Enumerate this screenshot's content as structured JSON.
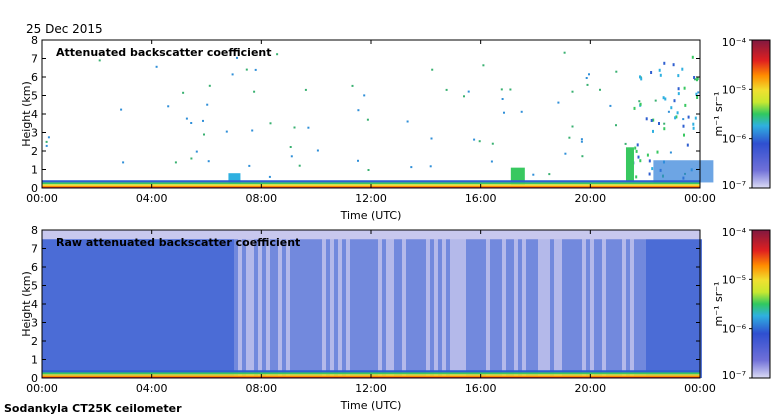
{
  "date": "25 Dec 2015",
  "footer": "Sodankyla CT25K ceilometer",
  "colors": {
    "colorbar": [
      "#1a0a55",
      "#3a2aa0",
      "#2f7fd8",
      "#35c0e0",
      "#38c860",
      "#f0f030",
      "#ff9000",
      "#e0201a",
      "#8a1c2a"
    ],
    "noise_fill": "#c8c8ee",
    "noise_dot": "#2c55d0",
    "axis": "#000000"
  },
  "chart_data": [
    {
      "type": "heatmap",
      "title": "Attenuated backscatter coefficient",
      "xlabel": "Time (UTC)",
      "ylabel": "Height (km)",
      "xlim": [
        "00:00",
        "24:00"
      ],
      "ylim": [
        0,
        8
      ],
      "x_ticks": [
        "00:00",
        "04:00",
        "08:00",
        "12:00",
        "16:00",
        "20:00",
        "00:00"
      ],
      "y_ticks": [
        "0",
        "1",
        "2",
        "3",
        "4",
        "5",
        "6",
        "7",
        "8"
      ],
      "colorbar": {
        "scale": "log",
        "range": [
          1e-07,
          0.0001
        ],
        "label": "m⁻¹ sr⁻¹",
        "ticks": [
          "10⁻⁴",
          "10⁻⁵",
          "10⁻⁶",
          "10⁻⁷"
        ]
      },
      "description": "Strong near-surface layer below ~0.3 km all day; low cloud ~1 km near 17:00 and 21:00-24:00 with sparse returns up to ~7 km after 22:00"
    },
    {
      "type": "heatmap",
      "title": "Raw attenuated backscatter coefficient",
      "xlabel": "Time (UTC)",
      "ylabel": "Height (km)",
      "xlim": [
        "00:00",
        "24:00"
      ],
      "ylim": [
        0,
        8
      ],
      "x_ticks": [
        "00:00",
        "04:00",
        "08:00",
        "12:00",
        "16:00",
        "20:00",
        "00:00"
      ],
      "y_ticks": [
        "0",
        "1",
        "2",
        "3",
        "4",
        "5",
        "6",
        "7",
        "8"
      ],
      "colorbar": {
        "scale": "log",
        "range": [
          1e-07,
          0.0001
        ],
        "label": "m⁻¹ sr⁻¹",
        "ticks": [
          "10⁻⁴",
          "10⁻⁵",
          "10⁻⁶",
          "10⁻⁷"
        ]
      },
      "description": "Noise-dominated field up to ~7.5 km with near-surface strong layer; paler vertical stripes between ~07:00 and ~22:00"
    }
  ]
}
